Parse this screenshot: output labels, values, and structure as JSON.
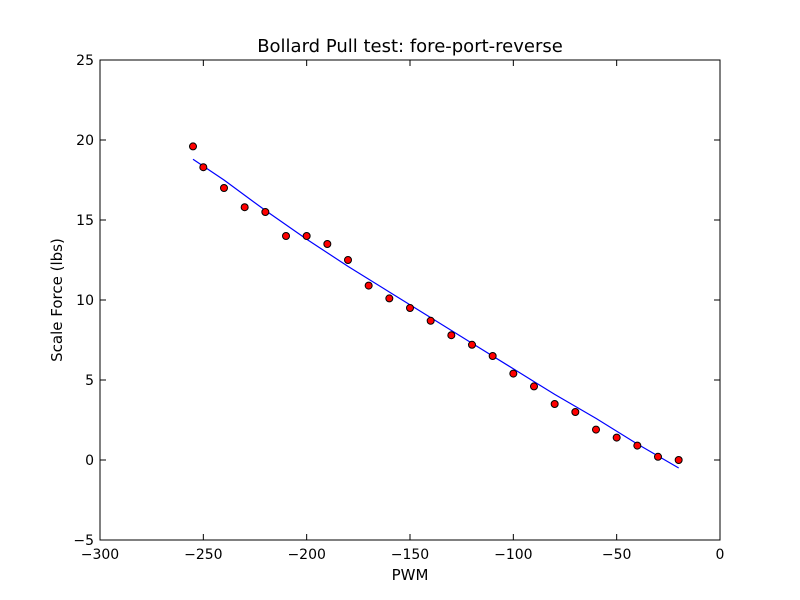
{
  "chart_data": {
    "type": "scatter",
    "title": "Bollard Pull test: fore-port-reverse",
    "xlabel": "PWM",
    "ylabel": "Scale Force (lbs)",
    "xlim": [
      -300,
      0
    ],
    "ylim": [
      -5,
      25
    ],
    "xticks": [
      -300,
      -250,
      -200,
      -150,
      -100,
      -50,
      0
    ],
    "yticks": [
      -5,
      0,
      5,
      10,
      15,
      20,
      25
    ],
    "grid": false,
    "series": [
      {
        "type": "scatter",
        "color": "#ff0000",
        "edge_color": "#000000",
        "x": [
          -255,
          -250,
          -240,
          -230,
          -220,
          -210,
          -200,
          -190,
          -180,
          -170,
          -160,
          -150,
          -140,
          -130,
          -120,
          -110,
          -100,
          -90,
          -80,
          -70,
          -60,
          -50,
          -40,
          -30,
          -20
        ],
        "y": [
          19.6,
          18.3,
          17.0,
          15.8,
          15.5,
          14.0,
          14.0,
          13.5,
          12.5,
          10.9,
          10.1,
          9.5,
          8.7,
          7.8,
          7.2,
          6.5,
          5.4,
          4.6,
          3.5,
          3.0,
          1.9,
          1.4,
          0.9,
          0.2,
          0.0
        ]
      },
      {
        "type": "line",
        "color": "#0000ff",
        "x": [
          -255,
          -240,
          -220,
          -200,
          -180,
          -160,
          -140,
          -120,
          -100,
          -80,
          -60,
          -40,
          -20
        ],
        "y": [
          18.8,
          17.5,
          15.6,
          13.8,
          12.1,
          10.5,
          8.9,
          7.3,
          5.7,
          4.1,
          2.6,
          1.0,
          -0.5
        ]
      }
    ]
  }
}
